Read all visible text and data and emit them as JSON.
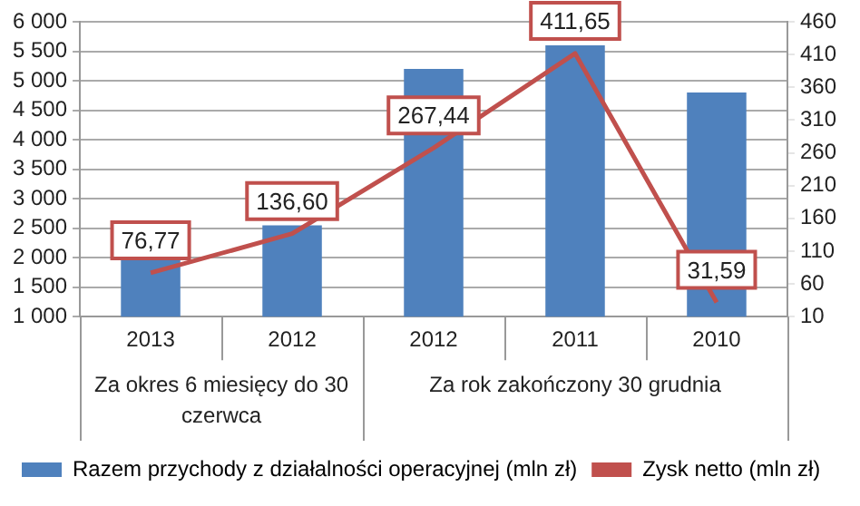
{
  "chart_data": {
    "type": "bar",
    "categories": [
      "2013",
      "2012",
      "2012",
      "2011",
      "2010"
    ],
    "series": [
      {
        "name": "Razem przychody z działalności operacyjnej (mln zł)",
        "color": "#4f81bd",
        "values": [
          2000,
          2550,
          5200,
          5600,
          4800
        ]
      },
      {
        "name": "Zysk netto (mln zł)",
        "type": "line",
        "axis": "y2",
        "color": "#c0504d",
        "values": [
          76.77,
          136.6,
          267.44,
          411.65,
          31.59
        ],
        "value_labels": [
          "76,77",
          "136,60",
          "267,44",
          "411,65",
          "31,59"
        ]
      }
    ],
    "ylim": [
      1000,
      6000
    ],
    "yticks": [
      {
        "value": 1000,
        "label": "1 000"
      },
      {
        "value": 1500,
        "label": "1 500"
      },
      {
        "value": 2000,
        "label": "2 000"
      },
      {
        "value": 2500,
        "label": "2 500"
      },
      {
        "value": 3000,
        "label": "3 000"
      },
      {
        "value": 3500,
        "label": "3 500"
      },
      {
        "value": 4000,
        "label": "4 000"
      },
      {
        "value": 4500,
        "label": "4 500"
      },
      {
        "value": 5000,
        "label": "5 000"
      },
      {
        "value": 5500,
        "label": "5 500"
      },
      {
        "value": 6000,
        "label": "6 000"
      }
    ],
    "y2lim": [
      10,
      460
    ],
    "y2ticks": [
      10,
      60,
      110,
      160,
      210,
      260,
      310,
      360,
      410,
      460
    ],
    "annotations": [
      "Za okres 6 miesięcy do 30 czerwca",
      "Za rok zakończony 30 grudnia"
    ],
    "grid": "y",
    "legend": "bottom",
    "marker": "none",
    "line_style": "solid"
  }
}
